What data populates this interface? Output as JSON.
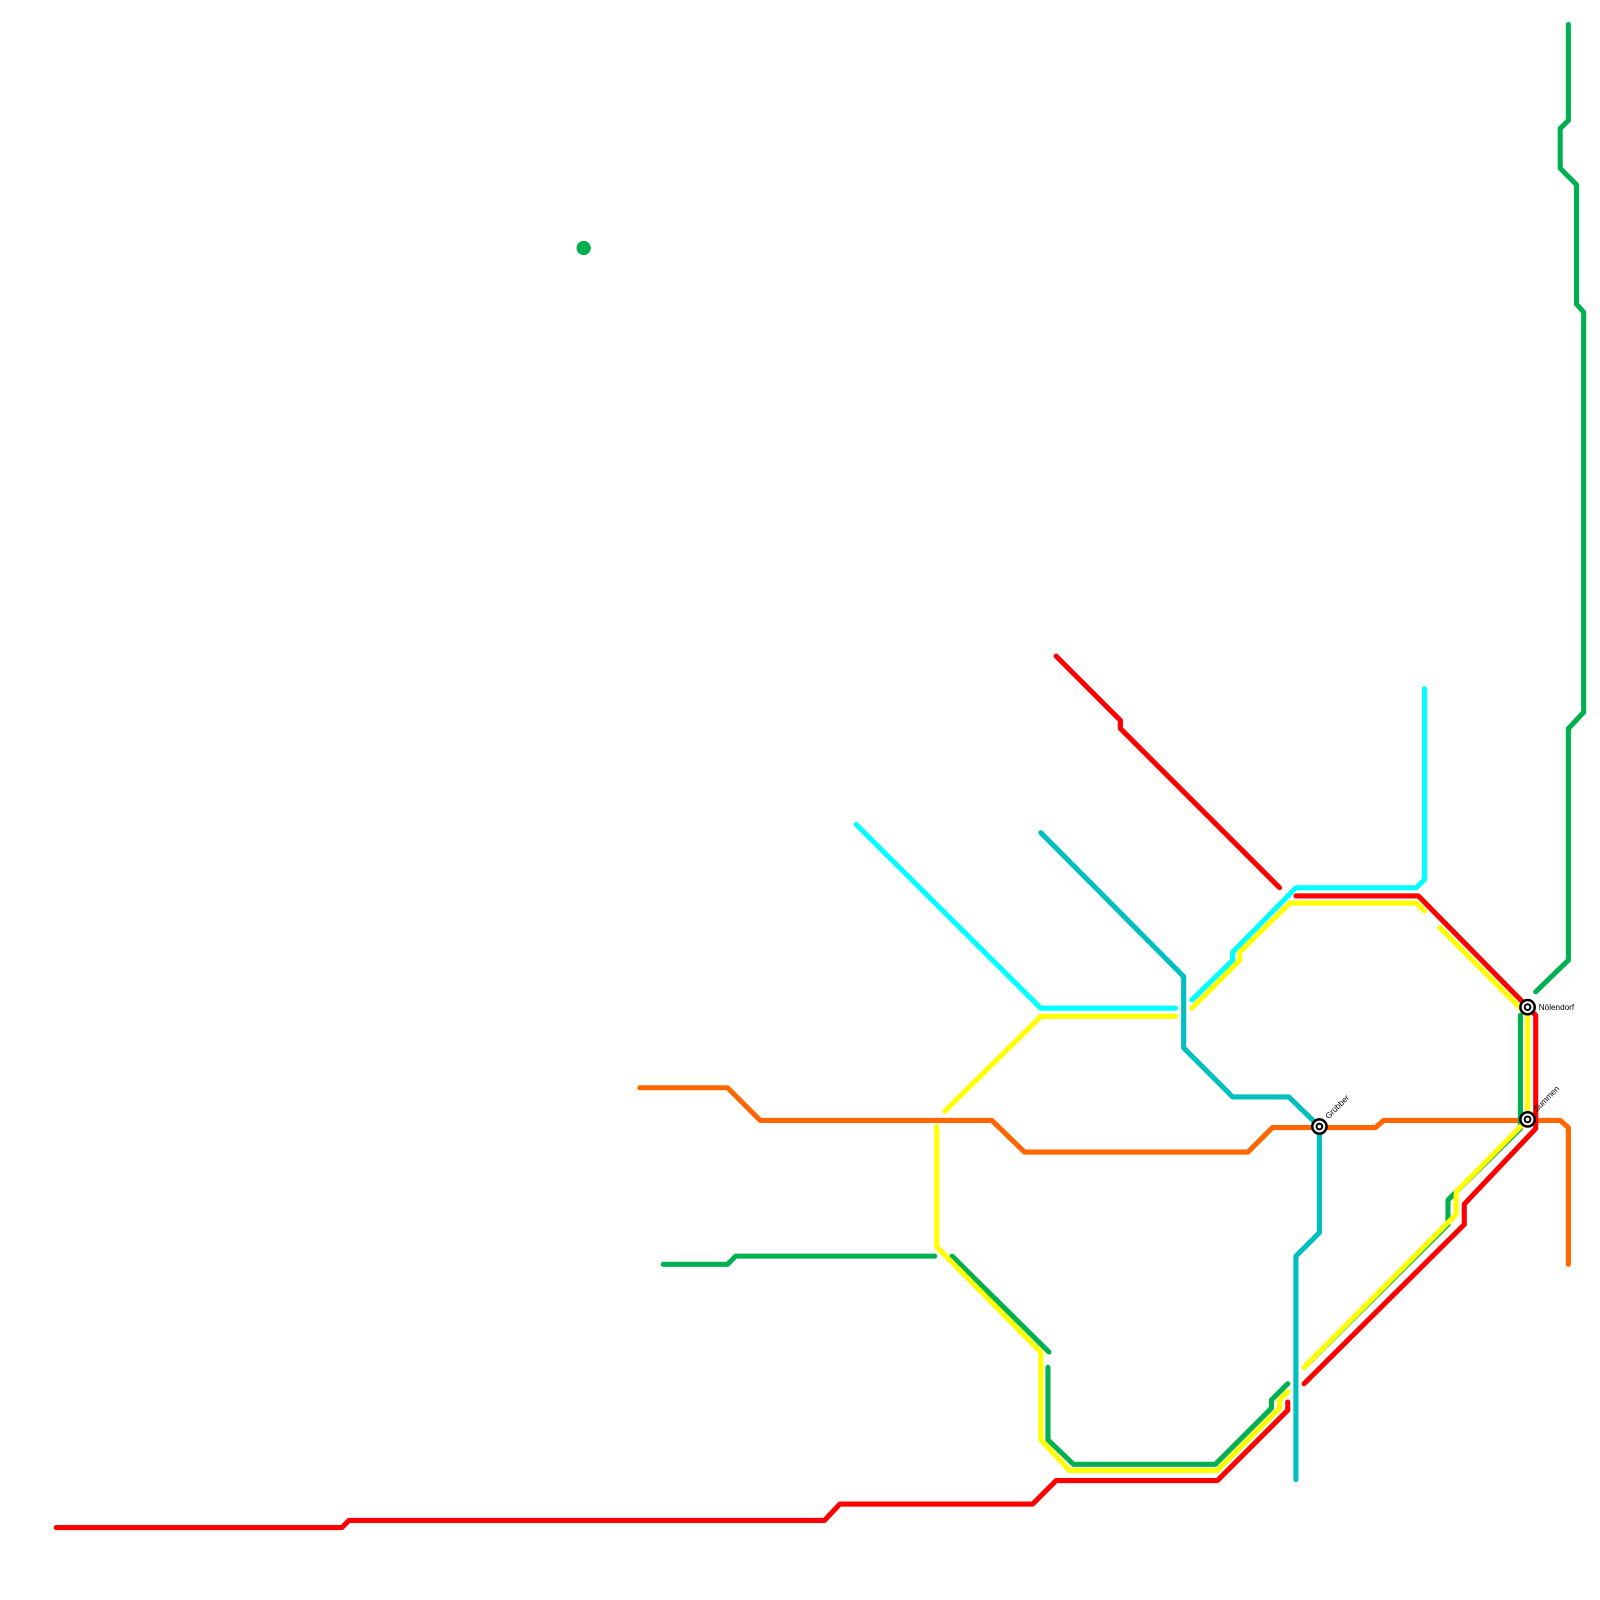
{
  "lines": [
    {
      "id": "red",
      "color": "#ff0000"
    },
    {
      "id": "yellow",
      "color": "#ffff00"
    },
    {
      "id": "green",
      "color": "#00b050"
    },
    {
      "id": "cyan",
      "color": "#00ffff"
    },
    {
      "id": "teal",
      "color": "#00bfbf"
    },
    {
      "id": "orange",
      "color": "#ff6600"
    }
  ],
  "stations": [
    {
      "name": "Nölendorf",
      "icon": "interchange-station-icon"
    },
    {
      "name": "Summen",
      "icon": "interchange-station-icon"
    },
    {
      "name": "Grübber",
      "icon": "interchange-station-icon"
    }
  ]
}
